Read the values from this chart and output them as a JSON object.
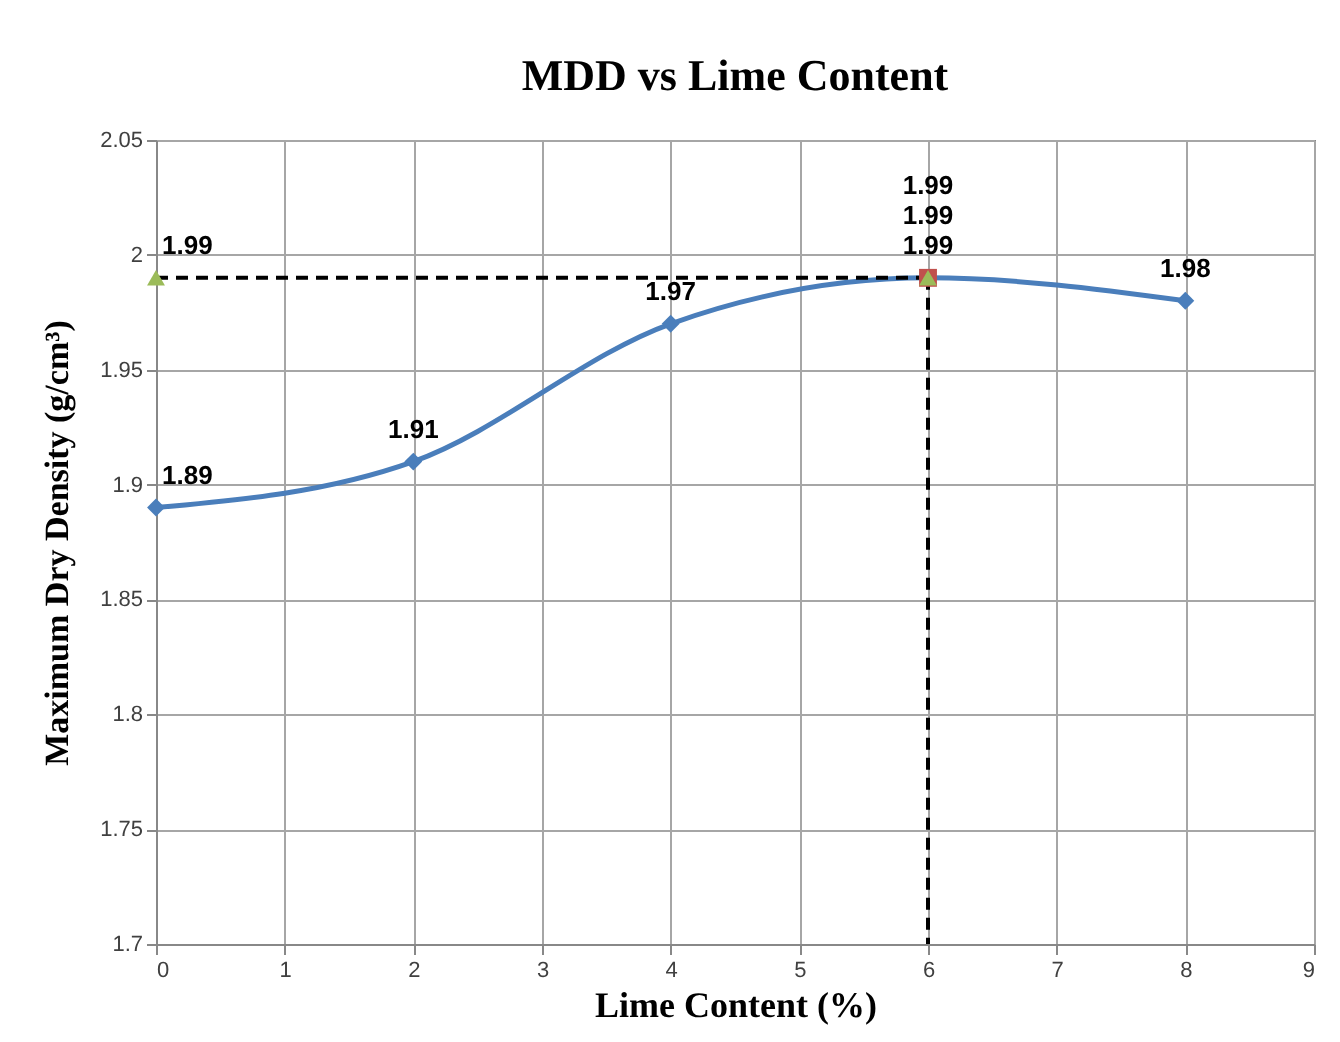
{
  "chart_data": {
    "type": "line",
    "title": "MDD vs Lime Content",
    "xlabel": "Lime Content (%)",
    "ylabel": "Maximum Dry Density (g/cm³)",
    "xlim": [
      0,
      9
    ],
    "xticks": [
      0,
      1,
      2,
      3,
      4,
      5,
      6,
      7,
      8,
      9
    ],
    "ylim": [
      1.7,
      2.05
    ],
    "yticks": [
      1.7,
      1.75,
      1.8,
      1.85,
      1.9,
      1.95,
      2,
      2.05
    ],
    "grid": true,
    "series": [
      {
        "type": "line",
        "color": "#4a7ebb",
        "marker": "diamond",
        "line_style": "solid",
        "x": [
          0,
          2,
          4,
          6,
          8
        ],
        "values": [
          1.89,
          1.91,
          1.97,
          1.99,
          1.98
        ],
        "value_labels": [
          "1.89",
          "1.91",
          "1.97",
          "1.99",
          "1.98"
        ]
      },
      {
        "type": "line",
        "color": "#000000",
        "marker": "none",
        "line_style": "dashed",
        "x": [
          0,
          6
        ],
        "values": [
          1.99,
          1.99
        ]
      },
      {
        "type": "line",
        "color": "#000000",
        "marker": "none",
        "line_style": "dashed",
        "x": [
          6,
          6
        ],
        "values": [
          1.99,
          1.7
        ]
      },
      {
        "type": "scatter",
        "color": "#c0504d",
        "marker": "square",
        "x": [
          6
        ],
        "values": [
          1.99
        ],
        "value_labels": [
          "1.99"
        ]
      },
      {
        "type": "scatter",
        "color": "#9bbb59",
        "marker": "triangle",
        "x": [
          0,
          6
        ],
        "values": [
          1.99,
          1.99
        ],
        "value_labels": [
          "1.99",
          "1.99"
        ]
      }
    ]
  }
}
